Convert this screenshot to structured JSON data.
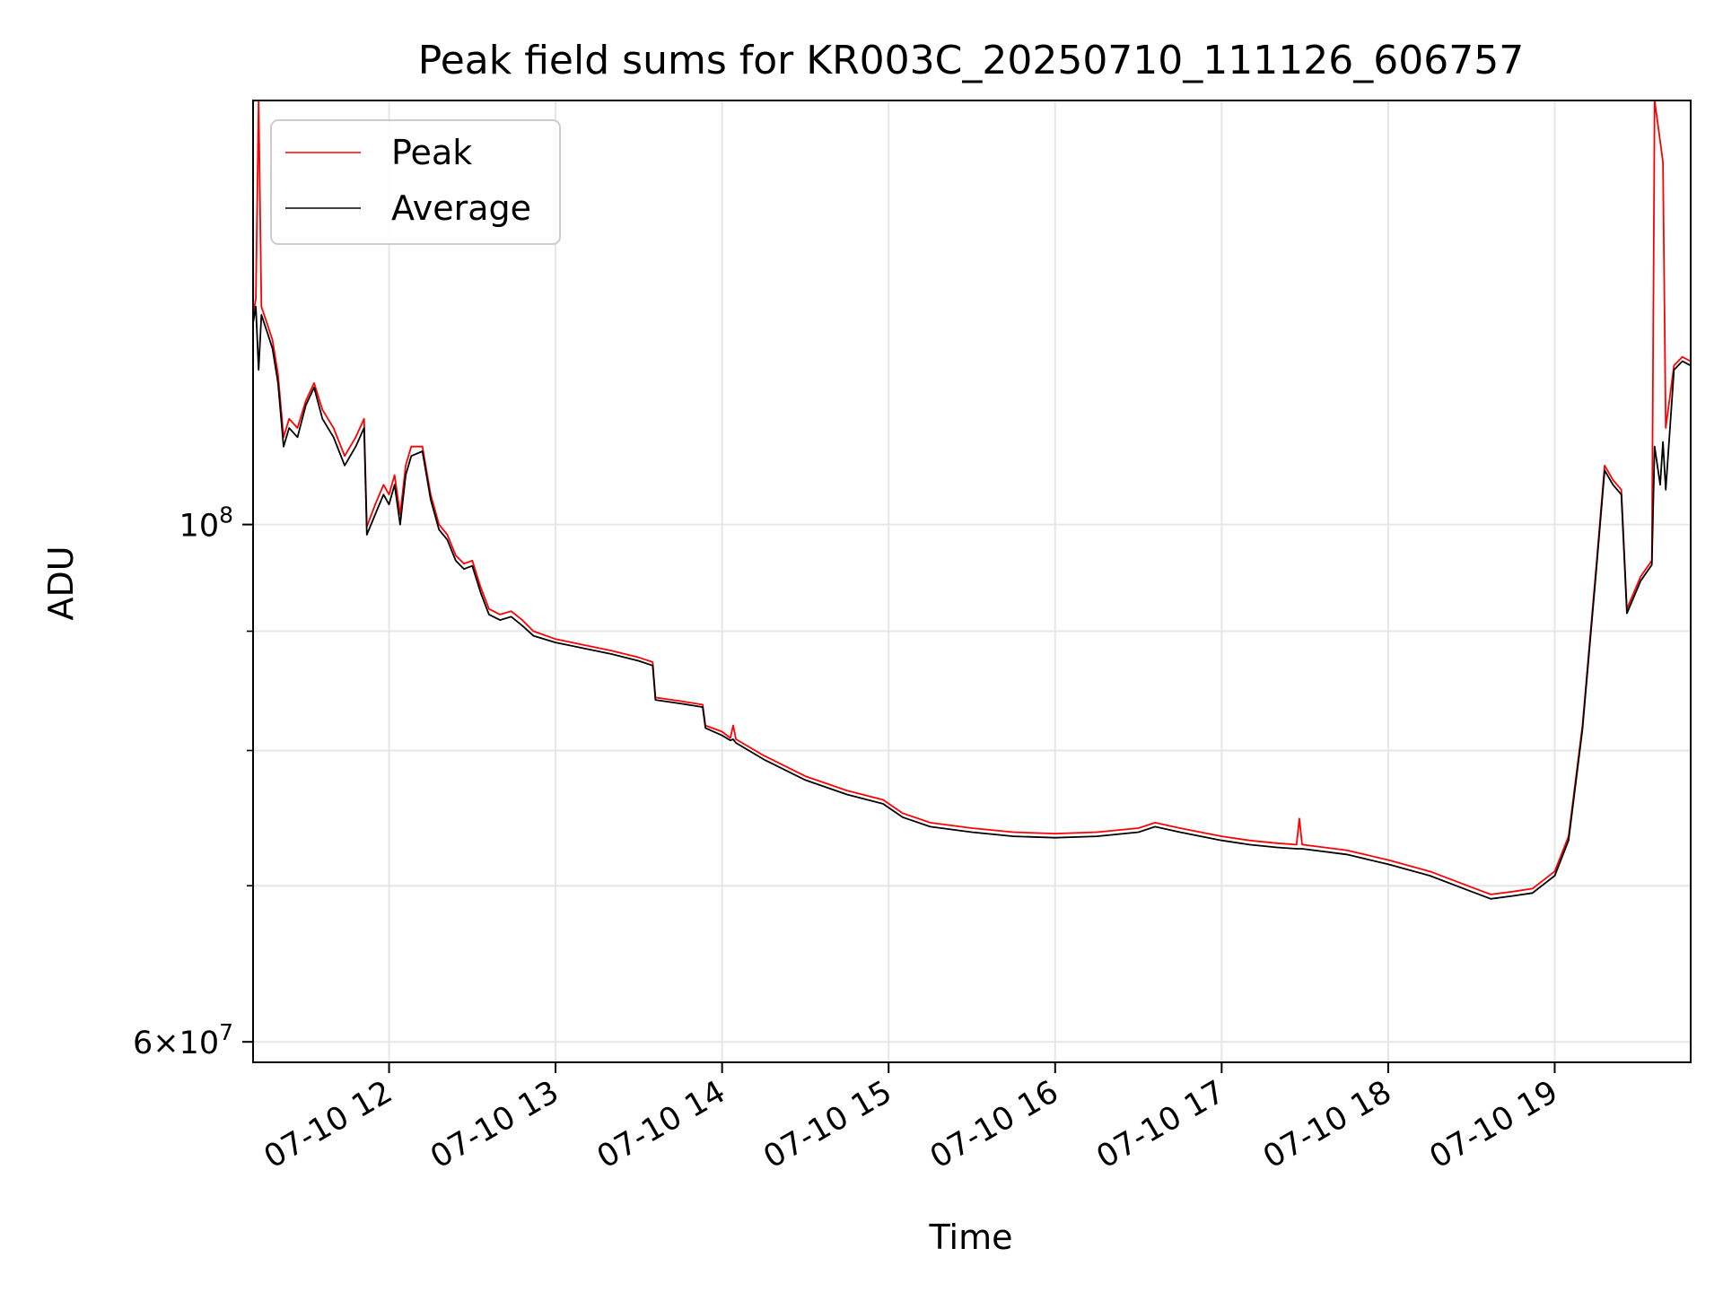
{
  "chart_data": {
    "type": "line",
    "title": "Peak field sums for KR003C_20250710_111126_606757",
    "xlabel": "Time",
    "ylabel": "ADU",
    "y_scale": "log",
    "xlim": [
      "07-10 11:11",
      "07-10 19:49"
    ],
    "ylim": [
      58800000,
      152000000
    ],
    "x_tick_labels": [
      "07-10 12",
      "07-10 13",
      "07-10 14",
      "07-10 15",
      "07-10 16",
      "07-10 17",
      "07-10 18",
      "07-10 19"
    ],
    "x_ticks": [
      "07-10 12:00",
      "07-10 13:00",
      "07-10 14:00",
      "07-10 15:00",
      "07-10 16:00",
      "07-10 17:00",
      "07-10 18:00",
      "07-10 19:00"
    ],
    "y_major_ticks": [
      {
        "value": 100000000,
        "base": "10",
        "exp": "8",
        "mant": ""
      },
      {
        "value": 60000000,
        "base": "10",
        "exp": "7",
        "mant": "6"
      }
    ],
    "y_minor_ticks": [
      70000000,
      80000000,
      90000000
    ],
    "grid": true,
    "legend_position": "top-left",
    "series": [
      {
        "name": "Peak",
        "color": "#ff0000",
        "points": [
          [
            "07-10 11:11",
            123000000
          ],
          [
            "07-10 11:12",
            125000000
          ],
          [
            "07-10 11:13",
            152000000
          ],
          [
            "07-10 11:14",
            124000000
          ],
          [
            "07-10 11:16",
            122000000
          ],
          [
            "07-10 11:18",
            120000000
          ],
          [
            "07-10 11:20",
            116000000
          ],
          [
            "07-10 11:22",
            109000000
          ],
          [
            "07-10 11:24",
            111000000
          ],
          [
            "07-10 11:27",
            110000000
          ],
          [
            "07-10 11:30",
            113000000
          ],
          [
            "07-10 11:33",
            115000000
          ],
          [
            "07-10 11:36",
            112000000
          ],
          [
            "07-10 11:40",
            110000000
          ],
          [
            "07-10 11:44",
            107000000
          ],
          [
            "07-10 11:48",
            109000000
          ],
          [
            "07-10 11:51",
            111000000
          ],
          [
            "07-10 11:52",
            99800000
          ],
          [
            "07-10 11:55",
            102000000
          ],
          [
            "07-10 11:58",
            104000000
          ],
          [
            "07-10 12:00",
            103000000
          ],
          [
            "07-10 12:02",
            105000000
          ],
          [
            "07-10 12:04",
            101000000
          ],
          [
            "07-10 12:06",
            106000000
          ],
          [
            "07-10 12:08",
            108000000
          ],
          [
            "07-10 12:12",
            108000000
          ],
          [
            "07-10 12:15",
            103000000
          ],
          [
            "07-10 12:18",
            100000000
          ],
          [
            "07-10 12:21",
            99000000
          ],
          [
            "07-10 12:24",
            97000000
          ],
          [
            "07-10 12:27",
            96200000
          ],
          [
            "07-10 12:30",
            96500000
          ],
          [
            "07-10 12:33",
            94000000
          ],
          [
            "07-10 12:36",
            92000000
          ],
          [
            "07-10 12:40",
            91500000
          ],
          [
            "07-10 12:44",
            91800000
          ],
          [
            "07-10 12:48",
            91000000
          ],
          [
            "07-10 12:52",
            90000000
          ],
          [
            "07-10 13:00",
            89300000
          ],
          [
            "07-10 13:10",
            88800000
          ],
          [
            "07-10 13:20",
            88300000
          ],
          [
            "07-10 13:30",
            87700000
          ],
          [
            "07-10 13:35",
            87300000
          ],
          [
            "07-10 13:36",
            84300000
          ],
          [
            "07-10 13:45",
            84000000
          ],
          [
            "07-10 13:53",
            83700000
          ],
          [
            "07-10 13:54",
            82000000
          ],
          [
            "07-10 14:00",
            81500000
          ],
          [
            "07-10 14:03",
            81000000
          ],
          [
            "07-10 14:04",
            82000000
          ],
          [
            "07-10 14:05",
            80900000
          ],
          [
            "07-10 14:15",
            79600000
          ],
          [
            "07-10 14:30",
            78000000
          ],
          [
            "07-10 14:45",
            76900000
          ],
          [
            "07-10 14:58",
            76200000
          ],
          [
            "07-10 15:05",
            75200000
          ],
          [
            "07-10 15:15",
            74500000
          ],
          [
            "07-10 15:30",
            74100000
          ],
          [
            "07-10 15:45",
            73800000
          ],
          [
            "07-10 16:00",
            73700000
          ],
          [
            "07-10 16:15",
            73800000
          ],
          [
            "07-10 16:30",
            74100000
          ],
          [
            "07-10 16:36",
            74500000
          ],
          [
            "07-10 16:45",
            74100000
          ],
          [
            "07-10 17:00",
            73500000
          ],
          [
            "07-10 17:10",
            73200000
          ],
          [
            "07-10 17:20",
            73000000
          ],
          [
            "07-10 17:27",
            72900000
          ],
          [
            "07-10 17:28",
            74800000
          ],
          [
            "07-10 17:29",
            72900000
          ],
          [
            "07-10 17:45",
            72500000
          ],
          [
            "07-10 18:00",
            71800000
          ],
          [
            "07-10 18:15",
            71000000
          ],
          [
            "07-10 18:30",
            69900000
          ],
          [
            "07-10 18:37",
            69400000
          ],
          [
            "07-10 18:45",
            69600000
          ],
          [
            "07-10 18:52",
            69800000
          ],
          [
            "07-10 19:00",
            71000000
          ],
          [
            "07-10 19:05",
            73500000
          ],
          [
            "07-10 19:10",
            82000000
          ],
          [
            "07-10 19:15",
            96000000
          ],
          [
            "07-10 19:18",
            106000000
          ],
          [
            "07-10 19:21",
            104500000
          ],
          [
            "07-10 19:24",
            103500000
          ],
          [
            "07-10 19:26",
            92000000
          ],
          [
            "07-10 19:31",
            95000000
          ],
          [
            "07-10 19:35",
            96500000
          ],
          [
            "07-10 19:36",
            152000000
          ],
          [
            "07-10 19:38",
            146000000
          ],
          [
            "07-10 19:39",
            143000000
          ],
          [
            "07-10 19:40",
            110000000
          ],
          [
            "07-10 19:43",
            117000000
          ],
          [
            "07-10 19:46",
            118000000
          ],
          [
            "07-10 19:49",
            117500000
          ]
        ]
      },
      {
        "name": "Average",
        "color": "#000000",
        "points": [
          [
            "07-10 11:11",
            122000000
          ],
          [
            "07-10 11:12",
            124000000
          ],
          [
            "07-10 11:13",
            116500000
          ],
          [
            "07-10 11:14",
            123000000
          ],
          [
            "07-10 11:16",
            121000000
          ],
          [
            "07-10 11:18",
            119000000
          ],
          [
            "07-10 11:20",
            115000000
          ],
          [
            "07-10 11:22",
            108000000
          ],
          [
            "07-10 11:24",
            110000000
          ],
          [
            "07-10 11:27",
            109000000
          ],
          [
            "07-10 11:30",
            112500000
          ],
          [
            "07-10 11:33",
            114500000
          ],
          [
            "07-10 11:36",
            111000000
          ],
          [
            "07-10 11:40",
            109000000
          ],
          [
            "07-10 11:44",
            106000000
          ],
          [
            "07-10 11:48",
            108000000
          ],
          [
            "07-10 11:51",
            110000000
          ],
          [
            "07-10 11:52",
            99000000
          ],
          [
            "07-10 11:55",
            101000000
          ],
          [
            "07-10 11:58",
            103000000
          ],
          [
            "07-10 12:00",
            102000000
          ],
          [
            "07-10 12:02",
            104000000
          ],
          [
            "07-10 12:04",
            100000000
          ],
          [
            "07-10 12:06",
            105000000
          ],
          [
            "07-10 12:08",
            107000000
          ],
          [
            "07-10 12:12",
            107500000
          ],
          [
            "07-10 12:15",
            102500000
          ],
          [
            "07-10 12:18",
            99500000
          ],
          [
            "07-10 12:21",
            98500000
          ],
          [
            "07-10 12:24",
            96500000
          ],
          [
            "07-10 12:27",
            95700000
          ],
          [
            "07-10 12:30",
            96000000
          ],
          [
            "07-10 12:33",
            93500000
          ],
          [
            "07-10 12:36",
            91500000
          ],
          [
            "07-10 12:40",
            91000000
          ],
          [
            "07-10 12:44",
            91300000
          ],
          [
            "07-10 12:48",
            90500000
          ],
          [
            "07-10 12:52",
            89600000
          ],
          [
            "07-10 13:00",
            89000000
          ],
          [
            "07-10 13:10",
            88500000
          ],
          [
            "07-10 13:20",
            88000000
          ],
          [
            "07-10 13:30",
            87400000
          ],
          [
            "07-10 13:35",
            87000000
          ],
          [
            "07-10 13:36",
            84100000
          ],
          [
            "07-10 13:45",
            83800000
          ],
          [
            "07-10 13:53",
            83500000
          ],
          [
            "07-10 13:54",
            81800000
          ],
          [
            "07-10 14:00",
            81200000
          ],
          [
            "07-10 14:03",
            80800000
          ],
          [
            "07-10 14:04",
            80900000
          ],
          [
            "07-10 14:05",
            80600000
          ],
          [
            "07-10 14:15",
            79300000
          ],
          [
            "07-10 14:30",
            77700000
          ],
          [
            "07-10 14:45",
            76600000
          ],
          [
            "07-10 14:58",
            75900000
          ],
          [
            "07-10 15:05",
            74900000
          ],
          [
            "07-10 15:15",
            74200000
          ],
          [
            "07-10 15:30",
            73800000
          ],
          [
            "07-10 15:45",
            73500000
          ],
          [
            "07-10 16:00",
            73400000
          ],
          [
            "07-10 16:15",
            73500000
          ],
          [
            "07-10 16:30",
            73800000
          ],
          [
            "07-10 16:36",
            74200000
          ],
          [
            "07-10 16:45",
            73800000
          ],
          [
            "07-10 17:00",
            73200000
          ],
          [
            "07-10 17:10",
            72900000
          ],
          [
            "07-10 17:20",
            72700000
          ],
          [
            "07-10 17:27",
            72600000
          ],
          [
            "07-10 17:28",
            72600000
          ],
          [
            "07-10 17:29",
            72600000
          ],
          [
            "07-10 17:45",
            72200000
          ],
          [
            "07-10 18:00",
            71500000
          ],
          [
            "07-10 18:15",
            70700000
          ],
          [
            "07-10 18:30",
            69600000
          ],
          [
            "07-10 18:37",
            69100000
          ],
          [
            "07-10 18:45",
            69300000
          ],
          [
            "07-10 18:52",
            69500000
          ],
          [
            "07-10 19:00",
            70700000
          ],
          [
            "07-10 19:05",
            73200000
          ],
          [
            "07-10 19:10",
            81700000
          ],
          [
            "07-10 19:15",
            95600000
          ],
          [
            "07-10 19:18",
            105500000
          ],
          [
            "07-10 19:21",
            104000000
          ],
          [
            "07-10 19:24",
            103000000
          ],
          [
            "07-10 19:26",
            91600000
          ],
          [
            "07-10 19:31",
            94600000
          ],
          [
            "07-10 19:35",
            96100000
          ],
          [
            "07-10 19:36",
            108000000
          ],
          [
            "07-10 19:38",
            104000000
          ],
          [
            "07-10 19:39",
            108500000
          ],
          [
            "07-10 19:40",
            103500000
          ],
          [
            "07-10 19:43",
            116500000
          ],
          [
            "07-10 19:46",
            117500000
          ],
          [
            "07-10 19:49",
            117000000
          ]
        ]
      }
    ]
  }
}
